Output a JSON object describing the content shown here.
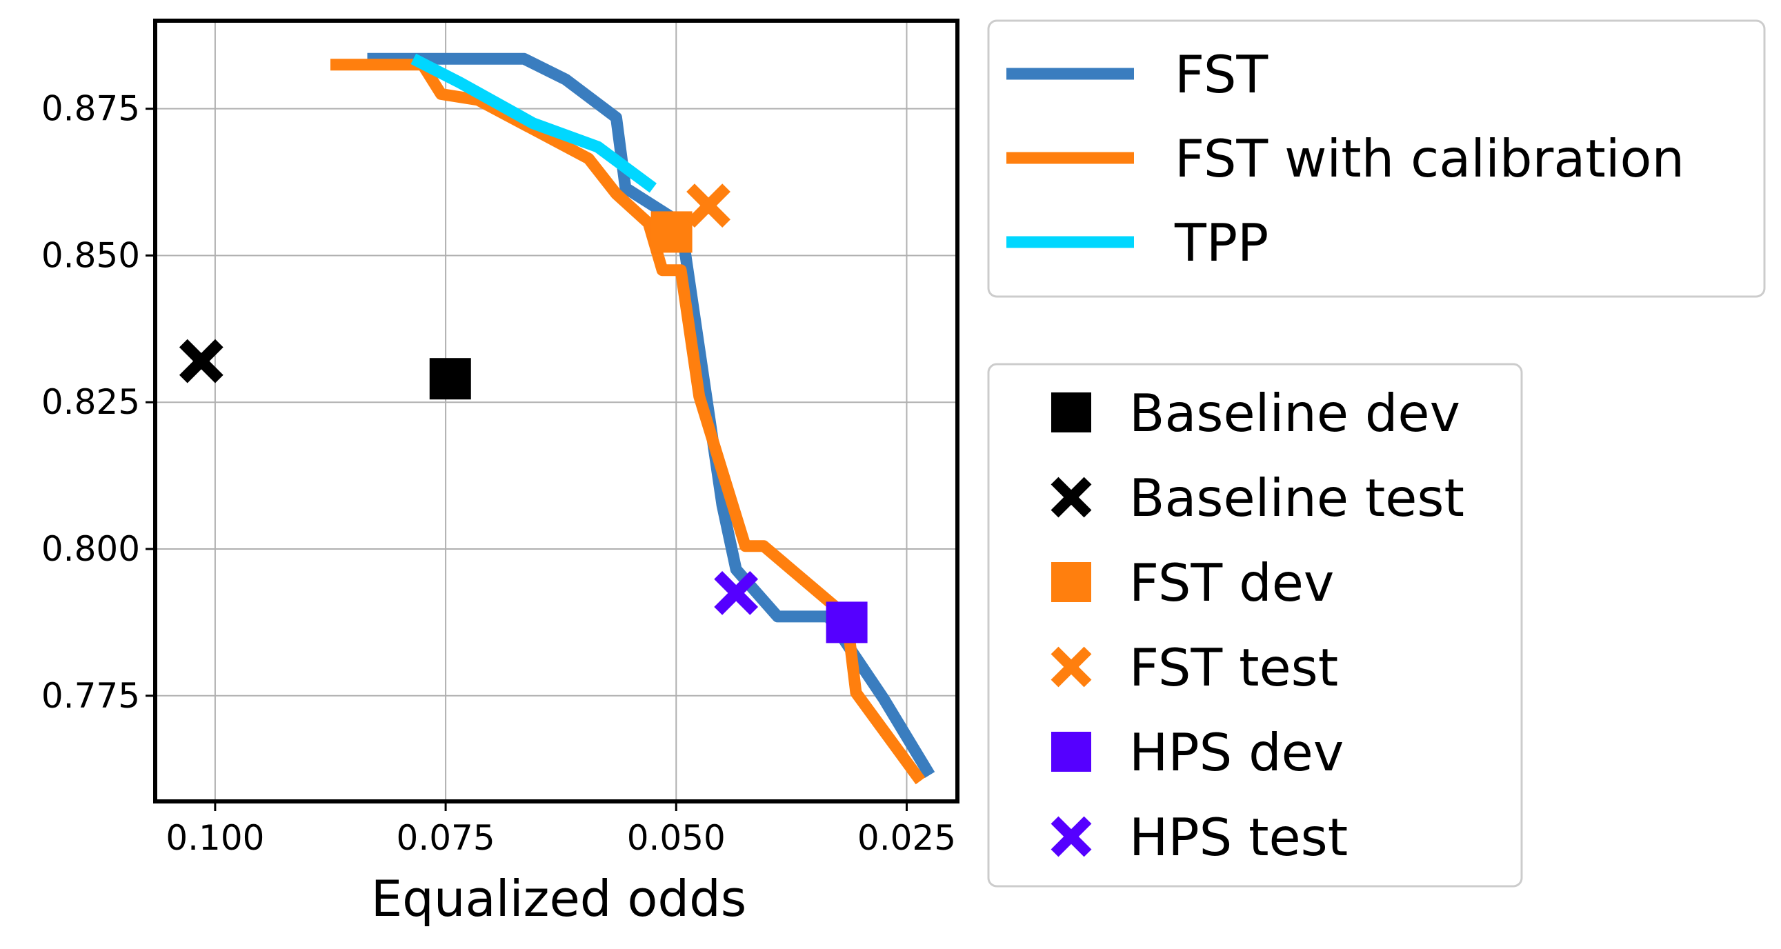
{
  "chart_data": {
    "type": "line",
    "title": "",
    "xlabel": "Equalized odds",
    "ylabel": "",
    "xlim": [
      0.1065,
      0.0195
    ],
    "ylim": [
      0.757,
      0.89
    ],
    "x_inverted": true,
    "xticks": [
      0.1,
      0.075,
      0.05,
      0.025
    ],
    "xtick_labels": [
      "0.100",
      "0.075",
      "0.050",
      "0.025"
    ],
    "yticks": [
      0.775,
      0.8,
      0.825,
      0.85,
      0.875
    ],
    "ytick_labels": [
      "0.775",
      "0.800",
      "0.825",
      "0.850",
      "0.875"
    ],
    "grid": true,
    "series": [
      {
        "name": "FST",
        "color": "#3a7dbf",
        "points": [
          [
            0.0835,
            0.8835
          ],
          [
            0.0785,
            0.8835
          ],
          [
            0.0745,
            0.8835
          ],
          [
            0.0665,
            0.8835
          ],
          [
            0.062,
            0.88
          ],
          [
            0.0565,
            0.8735
          ],
          [
            0.0555,
            0.8615
          ],
          [
            0.0495,
            0.8555
          ],
          [
            0.045,
            0.8075
          ],
          [
            0.0435,
            0.7965
          ],
          [
            0.039,
            0.7885
          ],
          [
            0.0335,
            0.7885
          ],
          [
            0.0275,
            0.7745
          ],
          [
            0.0225,
            0.7615
          ]
        ]
      },
      {
        "name": "FST with calibration",
        "color": "#ff7f0e",
        "points": [
          [
            0.0875,
            0.8825
          ],
          [
            0.0835,
            0.8825
          ],
          [
            0.0775,
            0.8825
          ],
          [
            0.0755,
            0.8775
          ],
          [
            0.0715,
            0.8765
          ],
          [
            0.0595,
            0.8665
          ],
          [
            0.0565,
            0.8605
          ],
          [
            0.053,
            0.8555
          ],
          [
            0.0515,
            0.8475
          ],
          [
            0.0495,
            0.8475
          ],
          [
            0.0475,
            0.826
          ],
          [
            0.0425,
            0.8005
          ],
          [
            0.0405,
            0.8005
          ],
          [
            0.0315,
            0.7885
          ],
          [
            0.0305,
            0.7755
          ],
          [
            0.0235,
            0.7605
          ]
        ]
      },
      {
        "name": "TPP",
        "color": "#00d7ff",
        "points": [
          [
            0.0785,
            0.8835
          ],
          [
            0.0735,
            0.8795
          ],
          [
            0.0655,
            0.8725
          ],
          [
            0.0585,
            0.8685
          ],
          [
            0.0525,
            0.8615
          ]
        ]
      }
    ],
    "markers": [
      {
        "name": "Baseline dev",
        "shape": "square",
        "color": "#000000",
        "x": 0.0745,
        "y": 0.829
      },
      {
        "name": "Baseline test",
        "shape": "x",
        "color": "#000000",
        "x": 0.1015,
        "y": 0.832
      },
      {
        "name": "FST dev",
        "shape": "square",
        "color": "#ff7f0e",
        "x": 0.0505,
        "y": 0.854
      },
      {
        "name": "FST test",
        "shape": "x",
        "color": "#ff7f0e",
        "x": 0.0465,
        "y": 0.8585
      },
      {
        "name": "HPS dev",
        "shape": "square",
        "color": "#5500ff",
        "x": 0.0315,
        "y": 0.7875
      },
      {
        "name": "HPS test",
        "shape": "x",
        "color": "#5500ff",
        "x": 0.0435,
        "y": 0.7925
      }
    ],
    "legends": [
      {
        "placement": "right-top",
        "entries": [
          "FST",
          "FST with calibration",
          "TPP"
        ]
      },
      {
        "placement": "right-bottom",
        "entries": [
          "Baseline dev",
          "Baseline test",
          "FST dev",
          "FST test",
          "HPS dev",
          "HPS test"
        ]
      }
    ]
  }
}
